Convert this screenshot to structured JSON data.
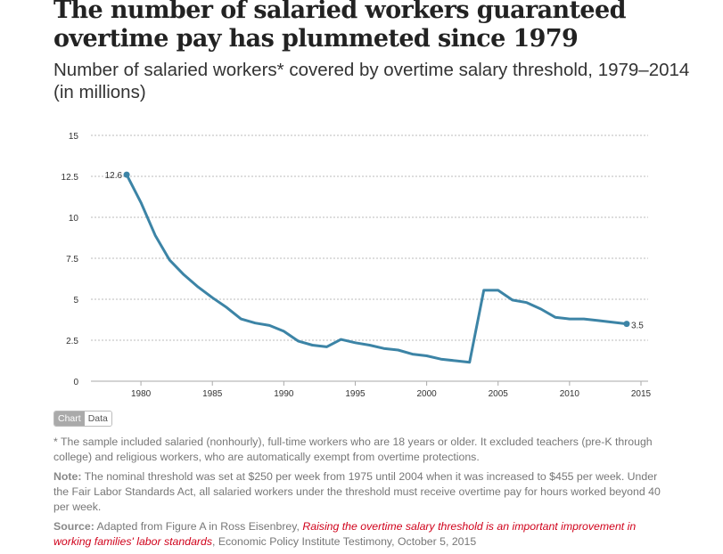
{
  "title": "The number of salaried workers guaranteed overtime pay has plummeted since 1979",
  "subtitle": "Number of salaried workers* covered by overtime salary threshold, 1979–2014 (in millions)",
  "chart_data": {
    "type": "line",
    "x": [
      1979,
      1980,
      1981,
      1982,
      1983,
      1984,
      1985,
      1986,
      1987,
      1988,
      1989,
      1990,
      1991,
      1992,
      1993,
      1994,
      1995,
      1996,
      1997,
      1998,
      1999,
      2000,
      2001,
      2002,
      2003,
      2004,
      2005,
      2006,
      2007,
      2008,
      2009,
      2010,
      2011,
      2012,
      2013,
      2014
    ],
    "series": [
      {
        "values": [
          12.6,
          10.9,
          8.9,
          7.4,
          6.5,
          5.75,
          5.1,
          4.5,
          3.8,
          3.55,
          3.4,
          3.05,
          2.45,
          2.2,
          2.1,
          2.55,
          2.35,
          2.2,
          2.0,
          1.9,
          1.65,
          1.55,
          1.35,
          1.25,
          1.15,
          5.55,
          5.55,
          4.95,
          4.8,
          4.4,
          3.9,
          3.8,
          3.8,
          3.7,
          3.6,
          3.5
        ],
        "color": "#3c84a6"
      }
    ],
    "data_labels": {
      "start": "12.6",
      "end": "3.5"
    },
    "xlim": [
      1976.5,
      2015.5
    ],
    "ylim": [
      0,
      15
    ],
    "xticks": [
      "1980",
      "1985",
      "1990",
      "1995",
      "2000",
      "2005",
      "2010",
      "2015"
    ],
    "yticks": [
      "0",
      "2.5",
      "5",
      "7.5",
      "10",
      "12.5",
      "15"
    ],
    "grid": "horizontal dotted",
    "xlabel": "",
    "ylabel": ""
  },
  "toggle": {
    "chart": "Chart",
    "data": "Data"
  },
  "notes": {
    "footnote": "* The sample included salaried (nonhourly), full-time workers who are 18 years or older. It excluded teachers (pre-K through college) and religious workers, who are automatically exempt from overtime protections.",
    "note_label": "Note:",
    "note": " The nominal threshold was set at $250 per week from 1975 until 2004 when it was increased to $455 per week. Under the Fair Labor Standards Act, all salaried workers under the threshold must receive overtime pay for hours worked beyond 40 per week.",
    "source_label": "Source:",
    "source_pre": " Adapted from Figure A in Ross Eisenbrey, ",
    "source_link": "Raising the overtime salary threshold is an important improvement in working families' labor standards",
    "source_post": ", Economic Policy Institute Testimony, October 5, 2015"
  }
}
